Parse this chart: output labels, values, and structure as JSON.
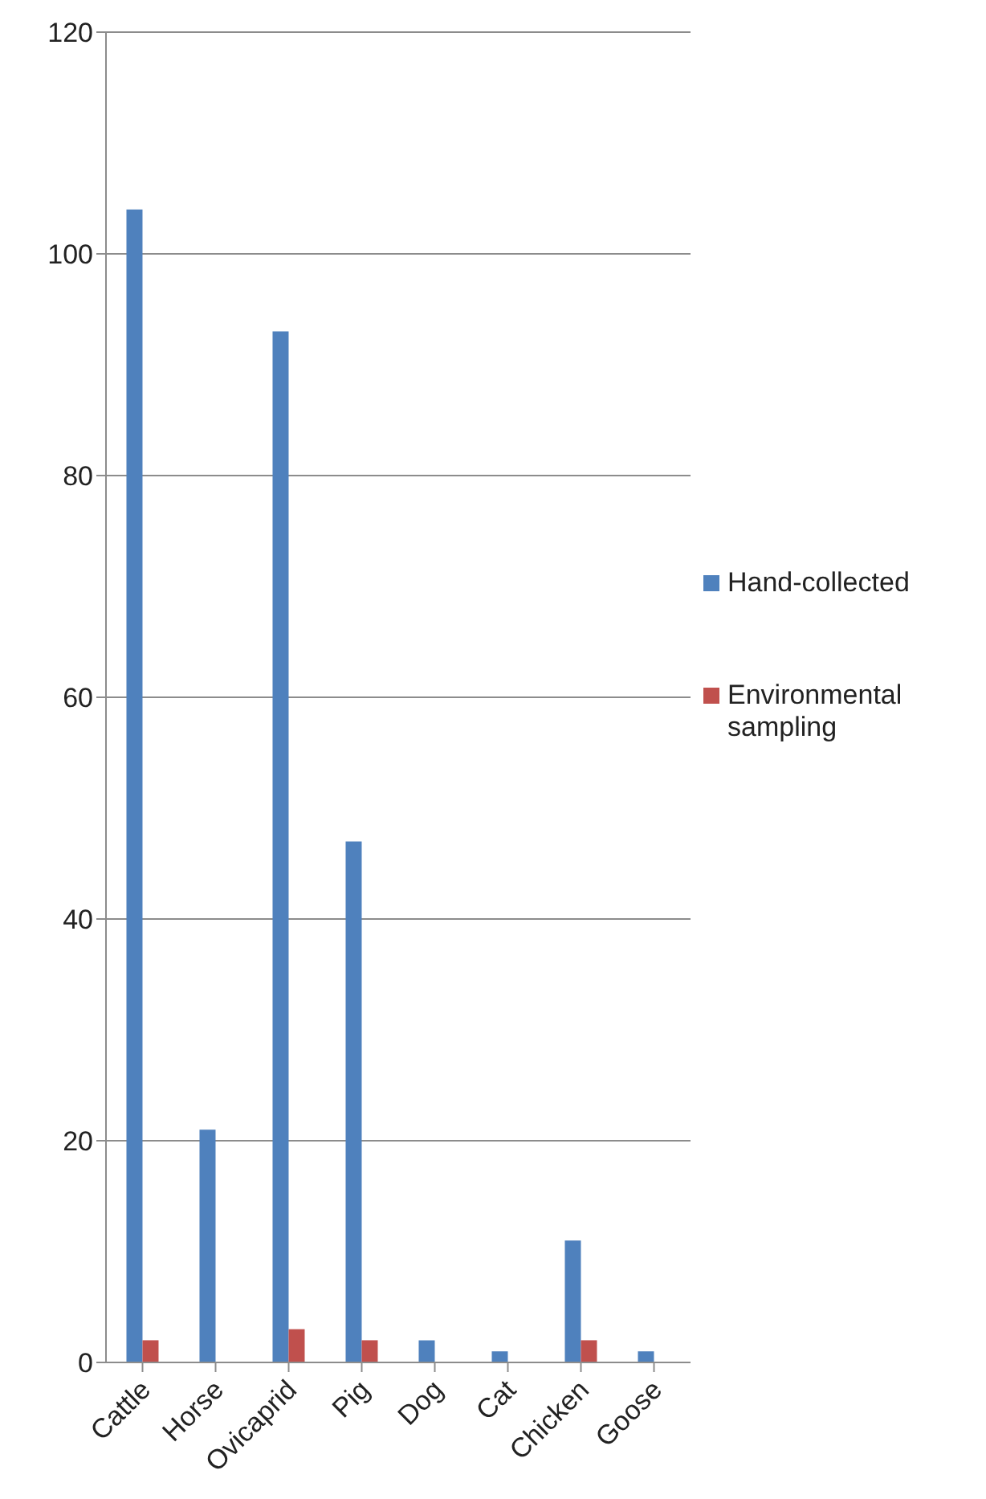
{
  "chart_data": {
    "type": "bar",
    "categories": [
      "Cattle",
      "Horse",
      "Ovicaprid",
      "Pig",
      "Dog",
      "Cat",
      "Chicken",
      "Goose"
    ],
    "series": [
      {
        "name": "Hand-collected",
        "color": "#4f81bd",
        "values": [
          104,
          21,
          93,
          47,
          2,
          1,
          11,
          1
        ]
      },
      {
        "name": "Environmental sampling",
        "color": "#c0504d",
        "values": [
          2,
          0,
          3,
          2,
          0,
          0,
          2,
          0
        ]
      }
    ],
    "ylim": [
      0,
      120
    ],
    "yticks": [
      0,
      20,
      40,
      60,
      80,
      100,
      120
    ],
    "grid": "y",
    "legend": "right"
  }
}
